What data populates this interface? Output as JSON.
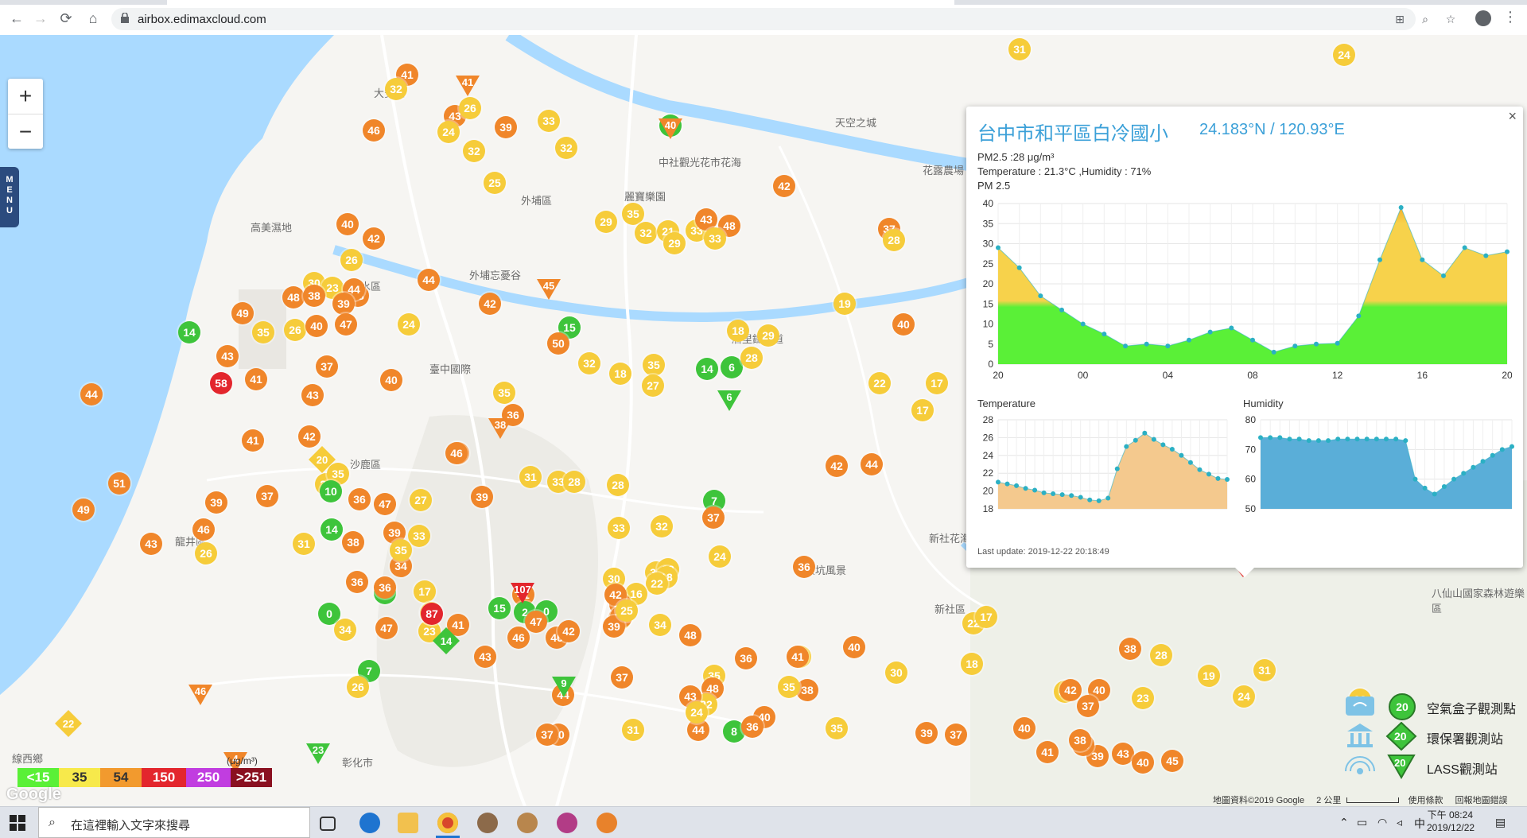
{
  "browser": {
    "url": "airbox.edimaxcloud.com"
  },
  "map": {
    "zoom_in": "+",
    "zoom_out": "−",
    "menu_label": "MENU",
    "labels": [
      {
        "t": "大安區",
        "id": "a"
      },
      {
        "t": "外埔區",
        "id": "b"
      },
      {
        "t": "高美濕地",
        "id": "c"
      },
      {
        "t": "清水區",
        "id": "d"
      },
      {
        "t": "外埔忘憂谷",
        "id": "e"
      },
      {
        "t": "麗寶樂園",
        "id": "f"
      },
      {
        "t": "天空之城",
        "id": "g"
      },
      {
        "t": "中社觀光花市花海",
        "id": "h"
      },
      {
        "t": "花露農場",
        "id": "i"
      },
      {
        "t": "臺中國際",
        "id": "j"
      },
      {
        "t": "沙鹿區",
        "id": "k"
      },
      {
        "t": "龍井區",
        "id": "l"
      },
      {
        "t": "大坑風景",
        "id": "m"
      },
      {
        "t": "新社花海",
        "id": "n"
      },
      {
        "t": "新社區",
        "id": "o"
      },
      {
        "t": "八仙山國家森林遊樂區",
        "id": "p"
      },
      {
        "t": "線西鄉",
        "id": "q"
      },
      {
        "t": "后里鐵馬道",
        "id": "r"
      },
      {
        "t": "彰化市",
        "id": "s"
      }
    ],
    "markers": [
      {
        "v": "41",
        "c": "o"
      },
      {
        "v": "32",
        "c": "y"
      },
      {
        "v": "46",
        "c": "o"
      },
      {
        "v": "43",
        "c": "o"
      },
      {
        "v": "26",
        "c": "y"
      },
      {
        "v": "39",
        "c": "o"
      },
      {
        "v": "33",
        "c": "y"
      },
      {
        "v": "32",
        "c": "y"
      },
      {
        "v": "24",
        "c": "y"
      },
      {
        "v": "32",
        "c": "y"
      },
      {
        "v": "25",
        "c": "y"
      },
      {
        "v": "40",
        "c": "g"
      },
      {
        "v": "42",
        "c": "o"
      },
      {
        "v": "37",
        "c": "o"
      },
      {
        "v": "31",
        "c": "y"
      },
      {
        "v": "24",
        "c": "y"
      },
      {
        "v": "40",
        "c": "o"
      },
      {
        "v": "26",
        "c": "y"
      },
      {
        "v": "42",
        "c": "o"
      },
      {
        "v": "38",
        "c": "o"
      },
      {
        "v": "30",
        "c": "y"
      },
      {
        "v": "23",
        "c": "y"
      },
      {
        "v": "44",
        "c": "o"
      },
      {
        "v": "44",
        "c": "o"
      },
      {
        "v": "29",
        "c": "y"
      },
      {
        "v": "35",
        "c": "y"
      },
      {
        "v": "32",
        "c": "y"
      },
      {
        "v": "21",
        "c": "y"
      },
      {
        "v": "33",
        "c": "y"
      },
      {
        "v": "43",
        "c": "o"
      },
      {
        "v": "48",
        "c": "o"
      },
      {
        "v": "33",
        "c": "y"
      },
      {
        "v": "29",
        "c": "y"
      },
      {
        "v": "28",
        "c": "y"
      },
      {
        "v": "19",
        "c": "y"
      },
      {
        "v": "40",
        "c": "o"
      },
      {
        "v": "49",
        "c": "o"
      },
      {
        "v": "48",
        "c": "o"
      },
      {
        "v": "38",
        "c": "o"
      },
      {
        "v": "39",
        "c": "o"
      },
      {
        "v": "42",
        "c": "o"
      },
      {
        "v": "14",
        "c": "g"
      },
      {
        "v": "35",
        "c": "y"
      },
      {
        "v": "26",
        "c": "y"
      },
      {
        "v": "40",
        "c": "o"
      },
      {
        "v": "47",
        "c": "o"
      },
      {
        "v": "24",
        "c": "y"
      },
      {
        "v": "15",
        "c": "g"
      },
      {
        "v": "50",
        "c": "o"
      },
      {
        "v": "18",
        "c": "y"
      },
      {
        "v": "29",
        "c": "y"
      },
      {
        "v": "40",
        "c": "o"
      },
      {
        "v": "37",
        "c": "o"
      },
      {
        "v": "43",
        "c": "o"
      },
      {
        "v": "58",
        "c": "r"
      },
      {
        "v": "41",
        "c": "o"
      },
      {
        "v": "43",
        "c": "o"
      },
      {
        "v": "35",
        "c": "y"
      },
      {
        "v": "22",
        "c": "y"
      },
      {
        "v": "17",
        "c": "y"
      },
      {
        "v": "32",
        "c": "y"
      },
      {
        "v": "18",
        "c": "y"
      },
      {
        "v": "27",
        "c": "y"
      },
      {
        "v": "14",
        "c": "g"
      },
      {
        "v": "6",
        "c": "g"
      },
      {
        "v": "28",
        "c": "y"
      },
      {
        "v": "44",
        "c": "o"
      },
      {
        "v": "42",
        "c": "o"
      },
      {
        "v": "41",
        "c": "o"
      },
      {
        "v": "36",
        "c": "o"
      },
      {
        "v": "35",
        "c": "y"
      },
      {
        "v": "42",
        "c": "o"
      },
      {
        "v": "17",
        "c": "y"
      },
      {
        "v": "20",
        "c": "y"
      },
      {
        "v": "35",
        "c": "y"
      },
      {
        "v": "44",
        "c": "o"
      },
      {
        "v": "36",
        "c": "o"
      },
      {
        "v": "46",
        "c": "o"
      },
      {
        "v": "51",
        "c": "o"
      },
      {
        "v": "10",
        "c": "g"
      },
      {
        "v": "39",
        "c": "o"
      },
      {
        "v": "31",
        "c": "y"
      },
      {
        "v": "33",
        "c": "y"
      },
      {
        "v": "28",
        "c": "y"
      },
      {
        "v": "28",
        "c": "y"
      },
      {
        "v": "49",
        "c": "o"
      },
      {
        "v": "39",
        "c": "o"
      },
      {
        "v": "37",
        "c": "o"
      },
      {
        "v": "36",
        "c": "o"
      },
      {
        "v": "47",
        "c": "o"
      },
      {
        "v": "7",
        "c": "g"
      },
      {
        "v": "43",
        "c": "o"
      },
      {
        "v": "46",
        "c": "o"
      },
      {
        "v": "26",
        "c": "y"
      },
      {
        "v": "31",
        "c": "y"
      },
      {
        "v": "14",
        "c": "g"
      },
      {
        "v": "27",
        "c": "y"
      },
      {
        "v": "33",
        "c": "y"
      },
      {
        "v": "39",
        "c": "o"
      },
      {
        "v": "34",
        "c": "o"
      },
      {
        "v": "35",
        "c": "y"
      },
      {
        "v": "38",
        "c": "o"
      },
      {
        "v": "36",
        "c": "o"
      },
      {
        "v": "24",
        "c": "y"
      },
      {
        "v": "37",
        "c": "o"
      },
      {
        "v": "33",
        "c": "y"
      },
      {
        "v": "32",
        "c": "y"
      },
      {
        "v": "34",
        "c": "y"
      },
      {
        "v": "30",
        "c": "y"
      },
      {
        "v": "23",
        "c": "y"
      },
      {
        "v": "18",
        "c": "y"
      },
      {
        "v": "22",
        "c": "y"
      },
      {
        "v": "16",
        "c": "y"
      },
      {
        "v": "43",
        "c": "o"
      },
      {
        "v": "40",
        "c": "o"
      },
      {
        "v": "42",
        "c": "o"
      },
      {
        "v": "34",
        "c": "y"
      },
      {
        "v": "38",
        "c": "o"
      },
      {
        "v": "36",
        "c": "o"
      },
      {
        "v": "40",
        "c": "o"
      },
      {
        "v": "4",
        "c": "g"
      },
      {
        "v": "0",
        "c": "g"
      },
      {
        "v": "17",
        "c": "y"
      },
      {
        "v": "36",
        "c": "o"
      },
      {
        "v": "23",
        "c": "y"
      },
      {
        "v": "34",
        "c": "y"
      },
      {
        "v": "7",
        "c": "g"
      },
      {
        "v": "34",
        "c": "y"
      },
      {
        "v": "26",
        "c": "y"
      },
      {
        "v": "47",
        "c": "o"
      },
      {
        "v": "41",
        "c": "o"
      },
      {
        "v": "87",
        "c": "r"
      },
      {
        "v": "15",
        "c": "g"
      },
      {
        "v": "41",
        "c": "o"
      },
      {
        "v": "2",
        "c": "g"
      },
      {
        "v": "39",
        "c": "o"
      },
      {
        "v": "46",
        "c": "o"
      },
      {
        "v": "0",
        "c": "g"
      },
      {
        "v": "25",
        "c": "y"
      },
      {
        "v": "47",
        "c": "o"
      },
      {
        "v": "46",
        "c": "o"
      },
      {
        "v": "34",
        "c": "y"
      },
      {
        "v": "48",
        "c": "o"
      },
      {
        "v": "30",
        "c": "y"
      },
      {
        "v": "43",
        "c": "o"
      },
      {
        "v": "42",
        "c": "o"
      },
      {
        "v": "36",
        "c": "o"
      },
      {
        "v": "35",
        "c": "y"
      },
      {
        "v": "41",
        "c": "o"
      },
      {
        "v": "38",
        "c": "o"
      },
      {
        "v": "48",
        "c": "o"
      },
      {
        "v": "40",
        "c": "o"
      },
      {
        "v": "22",
        "c": "y"
      },
      {
        "v": "37",
        "c": "o"
      },
      {
        "v": "40",
        "c": "o"
      },
      {
        "v": "44",
        "c": "o"
      },
      {
        "v": "43",
        "c": "o"
      },
      {
        "v": "44",
        "c": "o"
      },
      {
        "v": "8",
        "c": "g"
      },
      {
        "v": "36",
        "c": "o"
      },
      {
        "v": "37",
        "c": "o"
      },
      {
        "v": "31",
        "c": "y"
      },
      {
        "v": "24",
        "c": "y"
      },
      {
        "v": "35",
        "c": "y"
      },
      {
        "v": "35",
        "c": "y"
      },
      {
        "v": "30",
        "c": "y"
      },
      {
        "v": "22",
        "c": "y"
      },
      {
        "v": "18",
        "c": "y"
      },
      {
        "v": "34",
        "c": "y"
      },
      {
        "v": "38",
        "c": "o"
      },
      {
        "v": "23",
        "c": "y"
      },
      {
        "v": "23",
        "c": "y"
      },
      {
        "v": "31",
        "c": "y"
      },
      {
        "v": "24",
        "c": "y"
      },
      {
        "v": "28",
        "c": "y"
      },
      {
        "v": "19",
        "c": "y"
      },
      {
        "v": "40",
        "c": "o"
      },
      {
        "v": "37",
        "c": "o"
      },
      {
        "v": "42",
        "c": "o"
      },
      {
        "v": "17",
        "c": "y"
      },
      {
        "v": "39",
        "c": "o"
      },
      {
        "v": "37",
        "c": "o"
      },
      {
        "v": "40",
        "c": "o"
      },
      {
        "v": "41",
        "c": "o"
      },
      {
        "v": "43",
        "c": "o"
      },
      {
        "v": "39",
        "c": "o"
      },
      {
        "v": "36",
        "c": "o"
      },
      {
        "v": "38",
        "c": "o"
      },
      {
        "v": "40",
        "c": "o"
      },
      {
        "v": "45",
        "c": "o"
      },
      {
        "v": "33",
        "c": "y"
      }
    ],
    "triangles": [
      {
        "v": "41",
        "c": "o"
      },
      {
        "v": "40",
        "c": "o"
      },
      {
        "v": "45",
        "c": "o"
      },
      {
        "v": "38",
        "c": "o"
      },
      {
        "v": "107",
        "c": "r"
      },
      {
        "v": "46",
        "c": "o"
      },
      {
        "v": "23",
        "c": "g"
      },
      {
        "v": "9",
        "c": "g"
      },
      {
        "v": "6",
        "c": "g"
      },
      {
        "v": "4",
        "c": "o"
      }
    ],
    "diamonds": [
      {
        "v": "14",
        "c": "g"
      },
      {
        "v": "22",
        "c": "y"
      },
      {
        "v": "20",
        "c": "y"
      }
    ]
  },
  "popup": {
    "close": "×",
    "station_name": "台中市和平區白冷國小",
    "coords": "24.183°N / 120.93°E",
    "pm25_line": "PM2.5 :28 μg/m³",
    "weather_line": "Temperature : 21.3°C ,Humidity : 71%",
    "pm_title": "PM 2.5",
    "temp_title": "Temperature",
    "hum_title": "Humidity",
    "last_update": "Last update: 2019-12-22 20:18:49"
  },
  "chart_data": [
    {
      "type": "area",
      "title": "PM 2.5",
      "x_ticks": [
        "20",
        "00",
        "04",
        "08",
        "12",
        "16",
        "20"
      ],
      "values": [
        29,
        24,
        17,
        13.5,
        10,
        7.5,
        4.5,
        5,
        4.5,
        6,
        8,
        9,
        6,
        3,
        4.5,
        5,
        5.2,
        12,
        26,
        39,
        26,
        22,
        29,
        27,
        28
      ],
      "ylim": [
        0,
        40
      ],
      "y_ticks": [
        0,
        5,
        10,
        15,
        20,
        25,
        30,
        35,
        40
      ],
      "threshold": 15,
      "colors": {
        "low": "#5af037",
        "high": "#f7d24b",
        "peak": "#f5a623",
        "line": "#2bb0c4"
      }
    },
    {
      "type": "area",
      "title": "Temperature",
      "values": [
        21,
        20.8,
        20.6,
        20.3,
        20.1,
        19.8,
        19.7,
        19.6,
        19.5,
        19.3,
        19.0,
        18.9,
        19.2,
        22.5,
        25.0,
        25.7,
        26.5,
        25.8,
        25.2,
        24.7,
        24.0,
        23.2,
        22.4,
        21.9,
        21.4,
        21.3
      ],
      "ylim": [
        18,
        28
      ],
      "y_ticks": [
        18,
        20,
        22,
        24,
        26,
        28
      ],
      "colors": {
        "fill": "#f4c98e",
        "line": "#2bb0c4"
      }
    },
    {
      "type": "area",
      "title": "Humidity",
      "values": [
        74,
        74,
        74,
        73.5,
        73.5,
        73,
        73,
        73,
        73.5,
        73.5,
        73.5,
        73.5,
        73.5,
        73.5,
        73.5,
        73,
        60,
        57,
        55,
        57.5,
        60,
        62,
        64,
        66,
        68,
        70,
        71
      ],
      "ylim": [
        50,
        80
      ],
      "y_ticks": [
        50,
        60,
        70,
        80
      ],
      "colors": {
        "fill": "#5aaed8",
        "line": "#2bb0c4"
      }
    }
  ],
  "legend": {
    "items": [
      {
        "value": "20",
        "label": "空氣盒子觀測點",
        "icon": "airbox-icon"
      },
      {
        "value": "20",
        "label": "環保署觀測站",
        "icon": "government-building-icon"
      },
      {
        "value": "20",
        "label": "LASS觀測站",
        "icon": "lass-antenna-icon"
      }
    ]
  },
  "scale": [
    {
      "label": "<15",
      "color": "#5af037"
    },
    {
      "label": "35",
      "color": "#f7e94b"
    },
    {
      "label": "54",
      "color": "#f29a2e"
    },
    {
      "label": "150",
      "color": "#e3262d"
    },
    {
      "label": "250",
      "color": "#c13de0"
    },
    {
      "label": ">251",
      "color": "#8a1020"
    }
  ],
  "scale_unit": "(μg/m³)",
  "attribution": {
    "data": "地圖資料©2019 Google",
    "distance": "2 公里",
    "terms": "使用條款",
    "report": "回報地圖錯誤"
  },
  "google_logo": "Google",
  "taskbar": {
    "search_placeholder": "在這裡輸入文字來搜尋",
    "time": "下午 08:24",
    "date": "2019/12/22",
    "ime": "中"
  }
}
